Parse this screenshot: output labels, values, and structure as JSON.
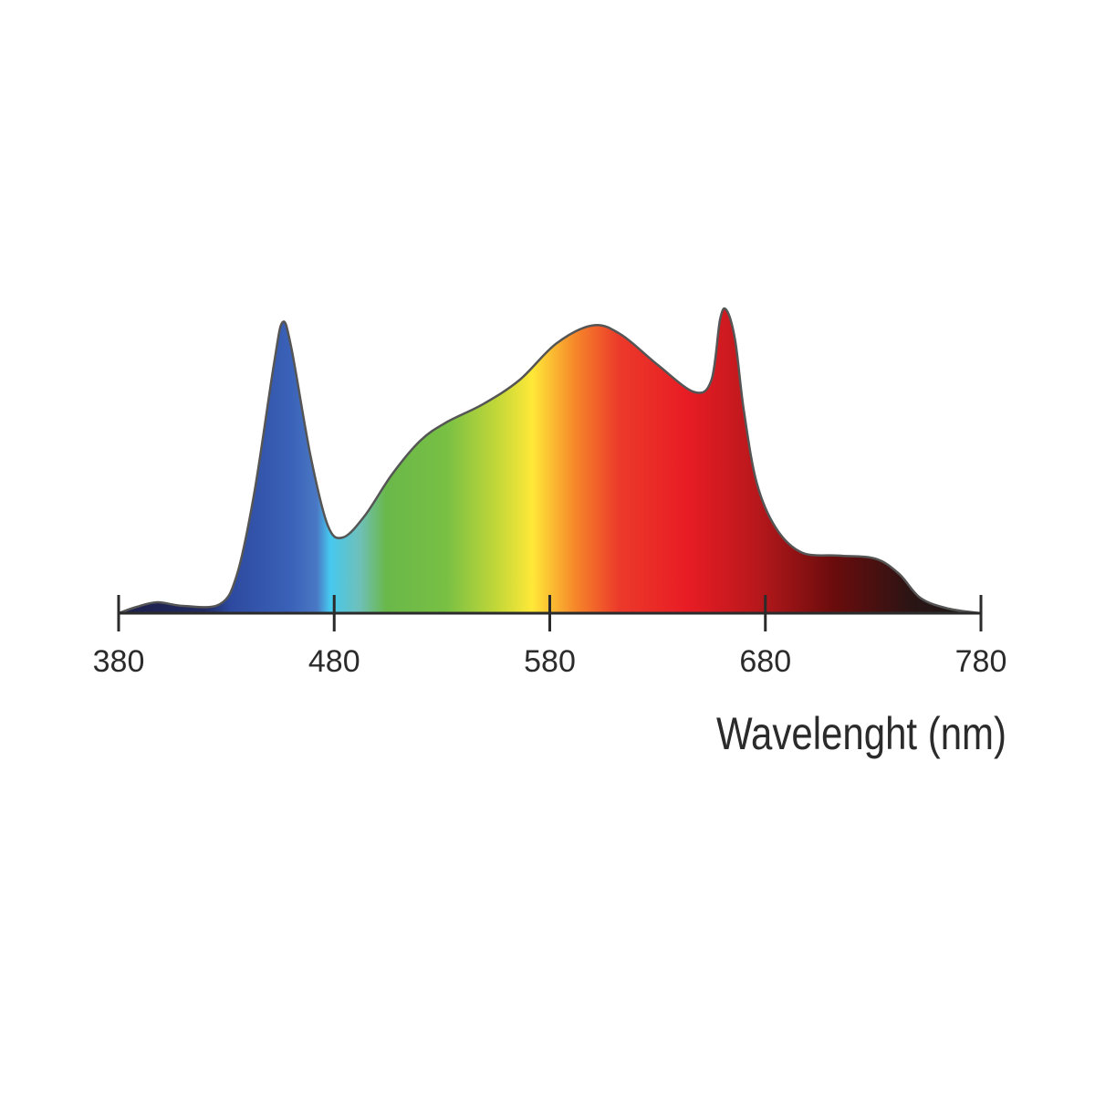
{
  "chart_data": {
    "type": "area",
    "x_label": "Wavelenght (nm)",
    "x": [
      380,
      388,
      398,
      410,
      427,
      435,
      443,
      452,
      456,
      460,
      469,
      477,
      484,
      494,
      507,
      520,
      532,
      549,
      566,
      583,
      600,
      613,
      630,
      647,
      655,
      659,
      662,
      666,
      670,
      676,
      685,
      697,
      714,
      731,
      742,
      752,
      765,
      780
    ],
    "values": [
      0,
      2,
      3.6,
      2.4,
      3,
      13,
      40,
      82,
      96,
      88,
      52,
      29,
      25,
      32,
      46,
      57,
      63,
      69,
      77,
      89,
      95,
      92,
      82,
      73,
      77,
      97,
      100,
      90,
      67,
      43,
      28,
      20,
      19,
      18,
      13,
      5,
      1.5,
      0
    ],
    "xlim": [
      380,
      780
    ],
    "xticks": [
      380,
      480,
      580,
      680,
      780
    ],
    "ylim": [
      0,
      100
    ],
    "line_color": "#555555"
  }
}
